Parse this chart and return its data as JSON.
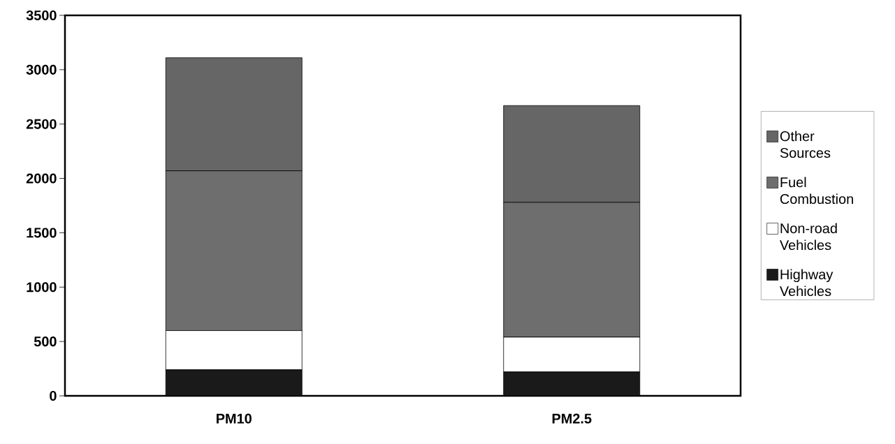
{
  "chart_data": {
    "type": "bar",
    "stacked": true,
    "categories": [
      "PM10",
      "PM2.5"
    ],
    "series": [
      {
        "name": "Highway Vehicles",
        "color": "#1a1a1a",
        "values": [
          240,
          220
        ]
      },
      {
        "name": "Non-road Vehicles",
        "color": "#ffffff",
        "values": [
          360,
          320
        ]
      },
      {
        "name": "Fuel Combustion",
        "color": "#6e6e6e",
        "values": [
          1470,
          1240
        ]
      },
      {
        "name": "Other Sources",
        "color": "#666666",
        "values": [
          1040,
          890
        ]
      }
    ],
    "ylim": [
      0,
      3500
    ],
    "yticks": [
      0,
      500,
      1000,
      1500,
      2000,
      2500,
      3000,
      3500
    ],
    "grid": false,
    "legend": "right"
  }
}
